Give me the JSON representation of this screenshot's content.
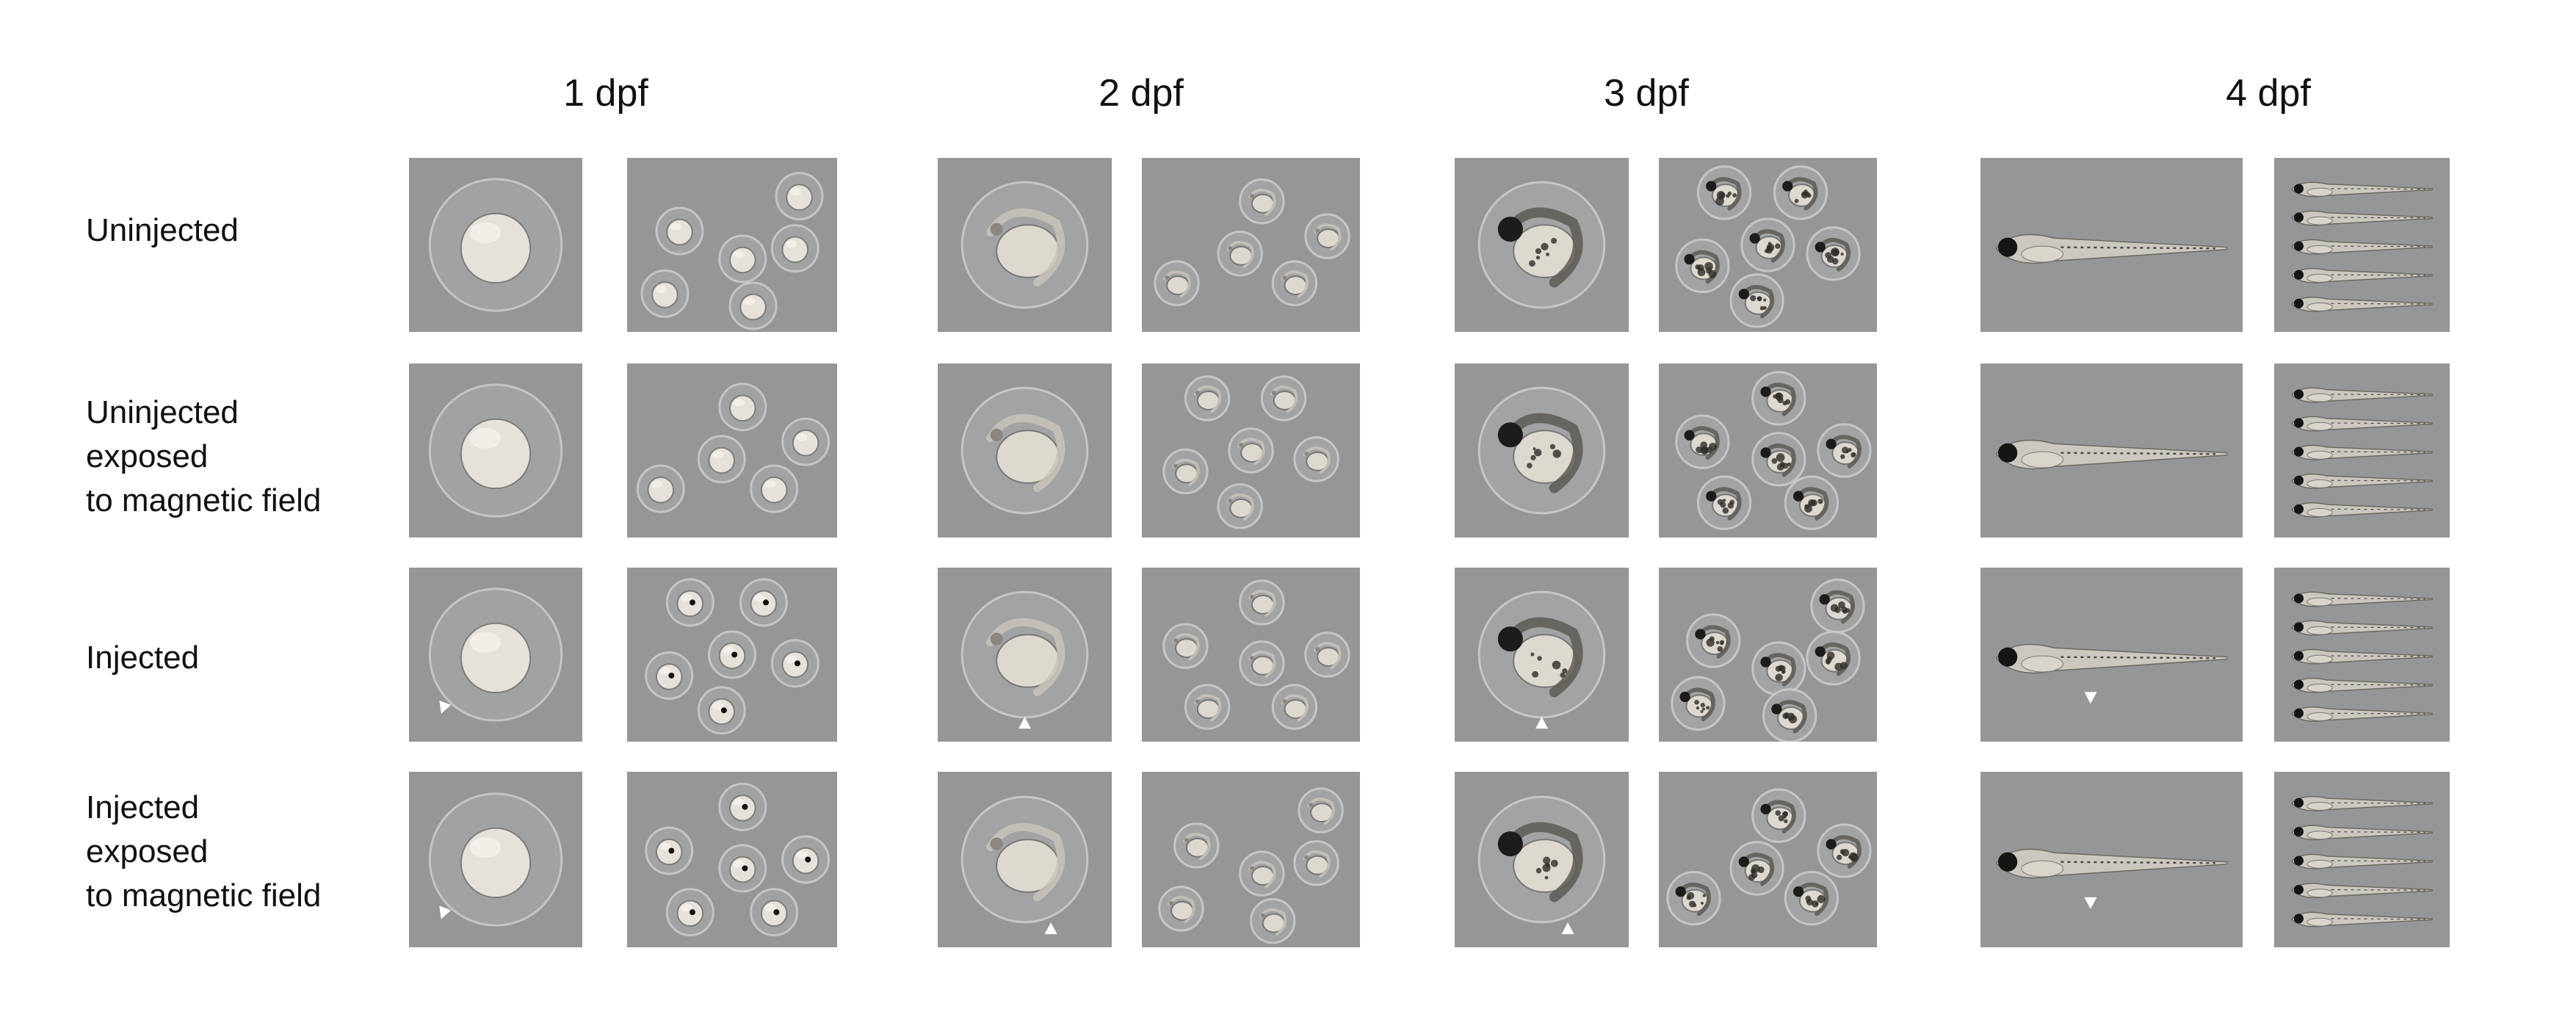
{
  "columns": [
    {
      "label": "1 dpf",
      "stage": "egg"
    },
    {
      "label": "2 dpf",
      "stage": "early"
    },
    {
      "label": "3 dpf",
      "stage": "late"
    },
    {
      "label": "4 dpf",
      "stage": "larva"
    }
  ],
  "rows": [
    {
      "label": "Uninjected",
      "arrows": false
    },
    {
      "label": "Uninjected\nexposed\nto magnetic field",
      "arrows": false
    },
    {
      "label": "Injected",
      "arrows": true
    },
    {
      "label": "Injected\nexposed\nto magnetic field",
      "arrows": true
    }
  ],
  "colors": {
    "background": "#ffffff",
    "panel_bg": "#8f9193",
    "arrowhead": "#ffffff",
    "text": "#111111"
  }
}
